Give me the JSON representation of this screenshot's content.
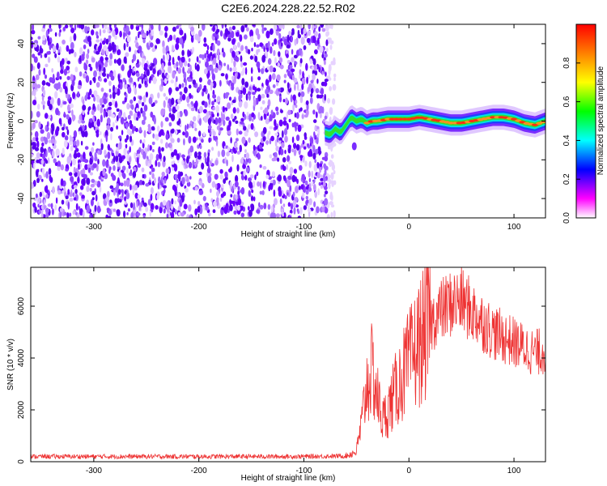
{
  "chart_data": [
    {
      "type": "heatmap",
      "title": "C2E6.2024.228.22.52.R02",
      "xlabel": "Height of straight line (km)",
      "ylabel": "Frequency (Hz)",
      "xlim": [
        -360,
        130
      ],
      "ylim": [
        -50,
        50
      ],
      "x_ticks": [
        -300,
        -200,
        -100,
        0,
        100
      ],
      "y_ticks": [
        -40,
        -20,
        0,
        20,
        40
      ],
      "noise_region_x": [
        -360,
        -75
      ],
      "trace": {
        "x": [
          -80,
          -75,
          -70,
          -65,
          -60,
          -55,
          -50,
          -45,
          -40,
          -35,
          -30,
          -20,
          -10,
          0,
          10,
          20,
          30,
          40,
          50,
          60,
          70,
          80,
          90,
          100,
          110,
          120,
          130
        ],
        "y": [
          -6,
          -7,
          -4,
          -6,
          -2,
          2,
          0,
          1,
          -1,
          0,
          0,
          1,
          1,
          1,
          2,
          1,
          0,
          -1,
          -1,
          0,
          1,
          2,
          2,
          1,
          -1,
          -2,
          0
        ]
      },
      "colorbar": {
        "label": "Normalized spectral amplitude",
        "range": [
          0,
          1
        ],
        "ticks": [
          "0.0",
          "0.2",
          "0.4",
          "0.6",
          "0.8"
        ],
        "colors": [
          "#ffffff",
          "#ff00ff",
          "#0000ff",
          "#00ffff",
          "#00ff00",
          "#ffff00",
          "#ff8000",
          "#ff0000"
        ]
      }
    },
    {
      "type": "line",
      "title": "",
      "xlabel": "Height of straight line (km)",
      "ylabel": "SNR (10 * v/v)",
      "xlim": [
        -360,
        130
      ],
      "ylim": [
        0,
        7500
      ],
      "x_ticks": [
        -300,
        -200,
        -100,
        0,
        100
      ],
      "y_ticks": [
        0,
        2000,
        4000,
        6000
      ],
      "color": "#ee3333",
      "series": [
        {
          "name": "SNR",
          "envelope_x": [
            -360,
            -100,
            -60,
            -50,
            -45,
            -40,
            -35,
            -30,
            -25,
            -20,
            -10,
            0,
            10,
            20,
            30,
            40,
            50,
            60,
            70,
            80,
            90,
            100,
            110,
            120,
            130
          ],
          "envelope_y": [
            200,
            200,
            220,
            400,
            1500,
            3000,
            3500,
            2500,
            1600,
            2000,
            3000,
            3800,
            4600,
            5300,
            5800,
            6100,
            6200,
            5800,
            5400,
            5000,
            4800,
            4600,
            4400,
            4200,
            4300
          ]
        }
      ]
    }
  ]
}
